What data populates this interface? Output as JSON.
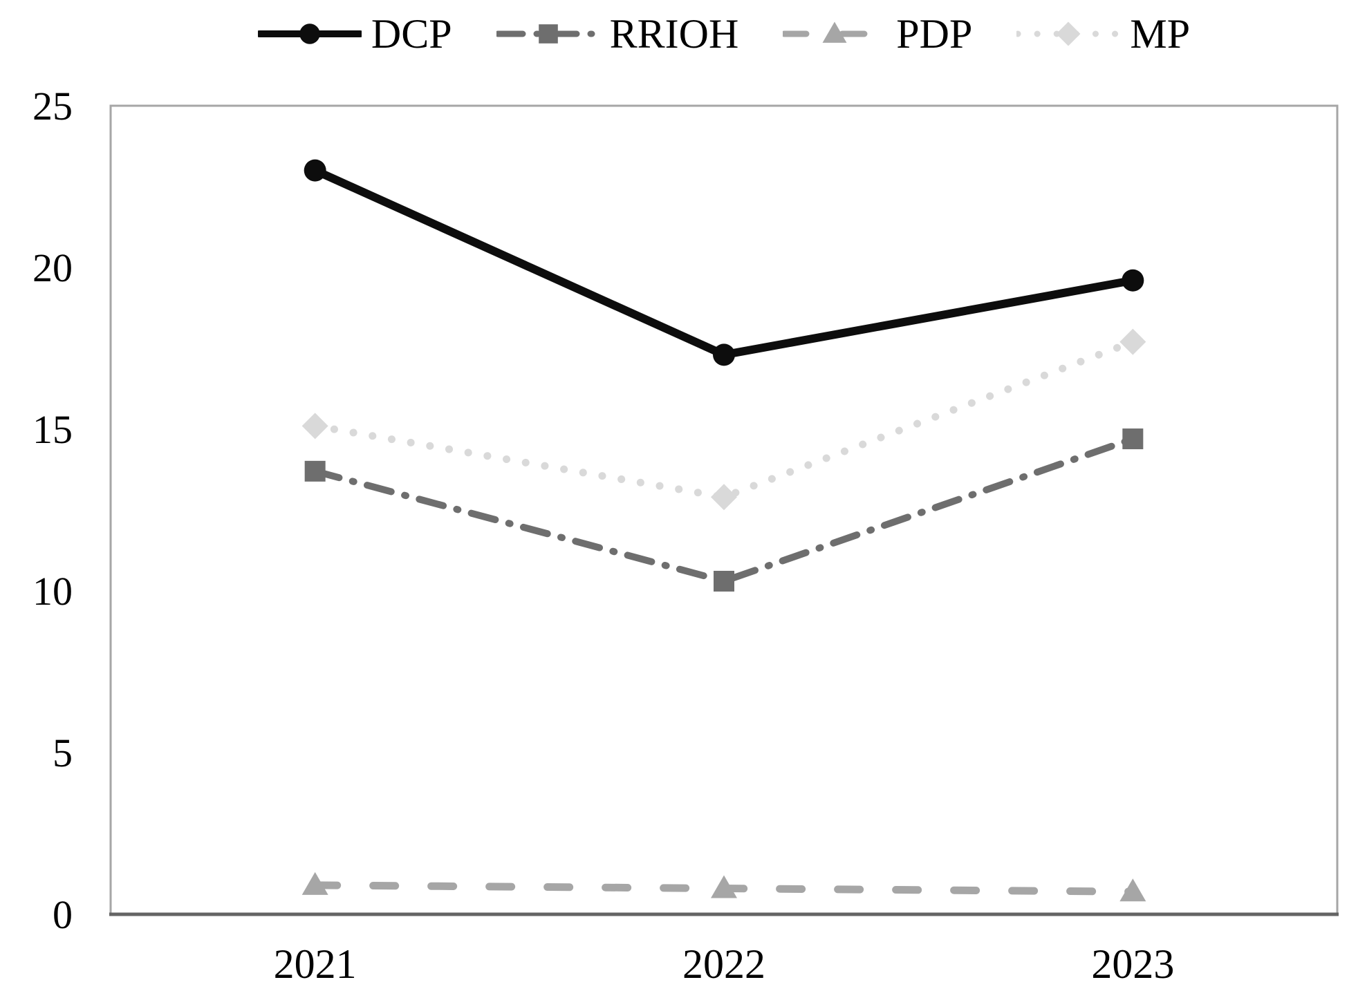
{
  "chart_data": {
    "type": "line",
    "title": "",
    "xlabel": "",
    "ylabel": "",
    "categories": [
      "2021",
      "2022",
      "2023"
    ],
    "series": [
      {
        "name": "DCP",
        "values": [
          23.0,
          17.3,
          19.6
        ],
        "color": "#0d0d0d",
        "line_style": "solid",
        "marker": "circle"
      },
      {
        "name": "RRIOH",
        "values": [
          13.7,
          10.3,
          14.7
        ],
        "color": "#6e6e6e",
        "line_style": "dash-dot",
        "marker": "square"
      },
      {
        "name": "PDP",
        "values": [
          0.9,
          0.8,
          0.7
        ],
        "color": "#a6a6a6",
        "line_style": "dash",
        "marker": "triangle"
      },
      {
        "name": "MP",
        "values": [
          15.1,
          12.9,
          17.7
        ],
        "color": "#d9d9d9",
        "line_style": "dot",
        "marker": "diamond"
      }
    ],
    "ylim": [
      0,
      25
    ],
    "yticks": [
      0,
      5,
      10,
      15,
      20,
      25
    ],
    "grid": false,
    "legend_position": "top"
  },
  "colors": {
    "background": "#ffffff",
    "plot_border": "#a6a6a6",
    "x_axis_line": "#646464",
    "text": "#000000"
  }
}
